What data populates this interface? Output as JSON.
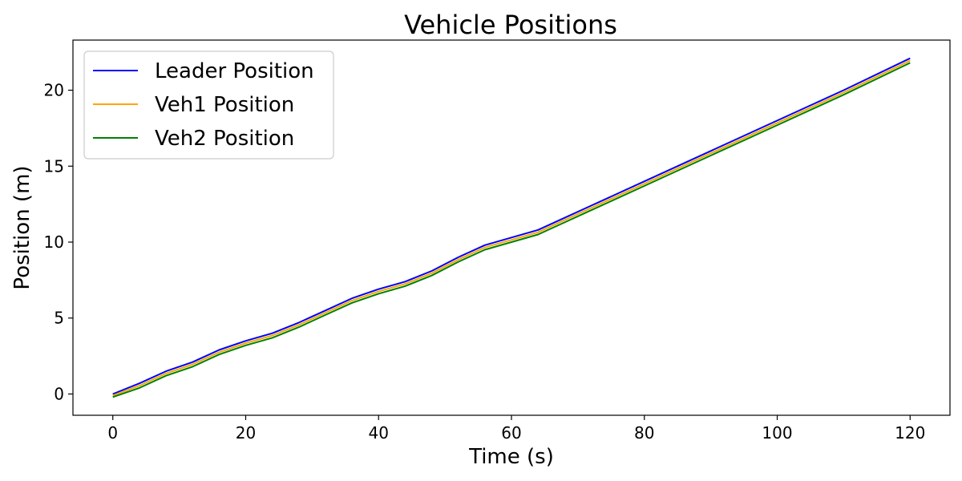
{
  "chart_data": {
    "type": "line",
    "title": "Vehicle Positions",
    "xlabel": "Time (s)",
    "ylabel": "Position (m)",
    "xlim": [
      -6,
      126
    ],
    "ylim": [
      -1.4,
      23.3
    ],
    "xticks": [
      0,
      20,
      40,
      60,
      80,
      100,
      120
    ],
    "yticks": [
      0,
      5,
      10,
      15,
      20
    ],
    "grid": false,
    "legend_position": "top-left",
    "series": [
      {
        "name": "Leader Position",
        "color": "#0000ff",
        "x": [
          0,
          4,
          8,
          12,
          16,
          20,
          24,
          28,
          32,
          36,
          40,
          44,
          48,
          52,
          56,
          60,
          64,
          68,
          72,
          80,
          90,
          100,
          110,
          120
        ],
        "y": [
          0.0,
          0.7,
          1.5,
          2.1,
          2.9,
          3.5,
          4.0,
          4.7,
          5.5,
          6.3,
          6.9,
          7.4,
          8.1,
          9.0,
          9.8,
          10.3,
          10.8,
          11.6,
          12.4,
          14.0,
          16.0,
          18.0,
          20.0,
          22.1
        ]
      },
      {
        "name": "Veh1 Position",
        "color": "#ffa500",
        "x": [
          0,
          4,
          8,
          12,
          16,
          20,
          24,
          28,
          32,
          36,
          40,
          44,
          48,
          52,
          56,
          60,
          64,
          68,
          72,
          80,
          90,
          100,
          110,
          120
        ],
        "y": [
          -0.1,
          0.55,
          1.35,
          1.95,
          2.75,
          3.35,
          3.85,
          4.55,
          5.35,
          6.15,
          6.75,
          7.25,
          7.95,
          8.85,
          9.65,
          10.15,
          10.65,
          11.45,
          12.25,
          13.85,
          15.85,
          17.85,
          19.85,
          21.95
        ]
      },
      {
        "name": "Veh2 Position",
        "color": "#008000",
        "x": [
          0,
          4,
          8,
          12,
          16,
          20,
          24,
          28,
          32,
          36,
          40,
          44,
          48,
          52,
          56,
          60,
          64,
          68,
          72,
          80,
          90,
          100,
          110,
          120
        ],
        "y": [
          -0.2,
          0.4,
          1.2,
          1.8,
          2.6,
          3.2,
          3.7,
          4.4,
          5.2,
          6.0,
          6.6,
          7.1,
          7.8,
          8.7,
          9.5,
          10.0,
          10.5,
          11.3,
          12.1,
          13.7,
          15.7,
          17.7,
          19.7,
          21.8
        ]
      }
    ]
  }
}
